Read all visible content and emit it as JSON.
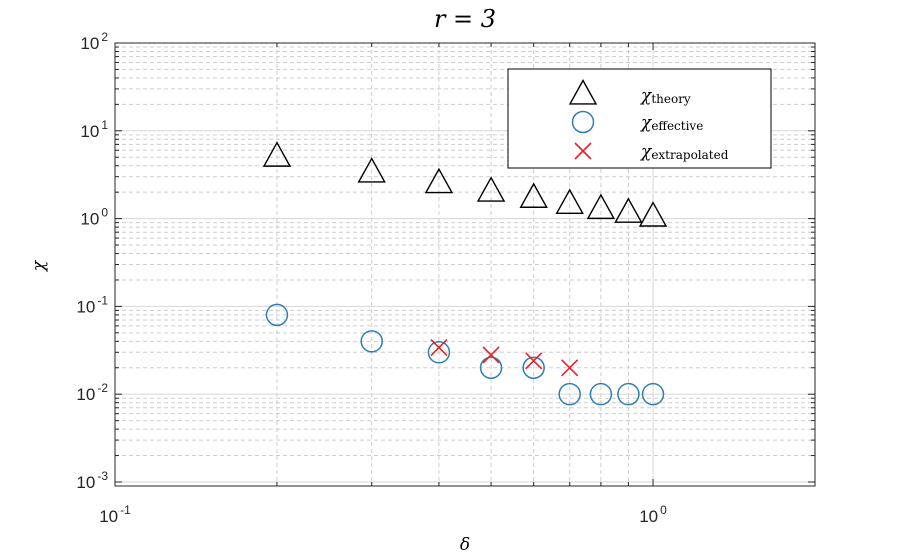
{
  "chart_data": {
    "type": "scatter",
    "title": "r = 3",
    "xlabel": "δ",
    "ylabel": "χ",
    "x_scale": "log",
    "y_scale": "log",
    "xlim": [
      0.1,
      2
    ],
    "ylim": [
      0.0009,
      100
    ],
    "x_ticks": [
      {
        "value": 0.1,
        "base": "10",
        "exp": "-1"
      },
      {
        "value": 1,
        "base": "10",
        "exp": "0"
      }
    ],
    "y_ticks": [
      {
        "value": 100,
        "base": "10",
        "exp": "2"
      },
      {
        "value": 10,
        "base": "10",
        "exp": "1"
      },
      {
        "value": 1,
        "base": "10",
        "exp": "0"
      },
      {
        "value": 0.1,
        "base": "10",
        "exp": "-1"
      },
      {
        "value": 0.01,
        "base": "10",
        "exp": "-2"
      },
      {
        "value": 0.001,
        "base": "10",
        "exp": "-3"
      }
    ],
    "grid": true,
    "legend_position": "top-right",
    "series": [
      {
        "name": "χtheory",
        "symbol": "χ",
        "subscript": "theory",
        "marker": "triangle",
        "color": "#000000",
        "x": [
          0.2,
          0.3,
          0.4,
          0.5,
          0.6,
          0.7,
          0.8,
          0.9,
          1.0
        ],
        "y": [
          5.0,
          3.3,
          2.5,
          2.0,
          1.7,
          1.45,
          1.27,
          1.15,
          1.04
        ]
      },
      {
        "name": "χeffective",
        "symbol": "χ",
        "subscript": "effective",
        "marker": "circle",
        "color": "#2e7fb0",
        "x": [
          0.2,
          0.3,
          0.4,
          0.5,
          0.6,
          0.7,
          0.8,
          0.9,
          1.0
        ],
        "y": [
          0.08,
          0.04,
          0.03,
          0.02,
          0.02,
          0.01,
          0.01,
          0.01,
          0.01
        ]
      },
      {
        "name": "χextrapolated",
        "symbol": "χ",
        "subscript": "extrapolated",
        "marker": "x",
        "color": "#e8202a",
        "x": [
          0.4,
          0.5,
          0.6,
          0.7
        ],
        "y": [
          0.034,
          0.028,
          0.024,
          0.02
        ]
      }
    ]
  }
}
